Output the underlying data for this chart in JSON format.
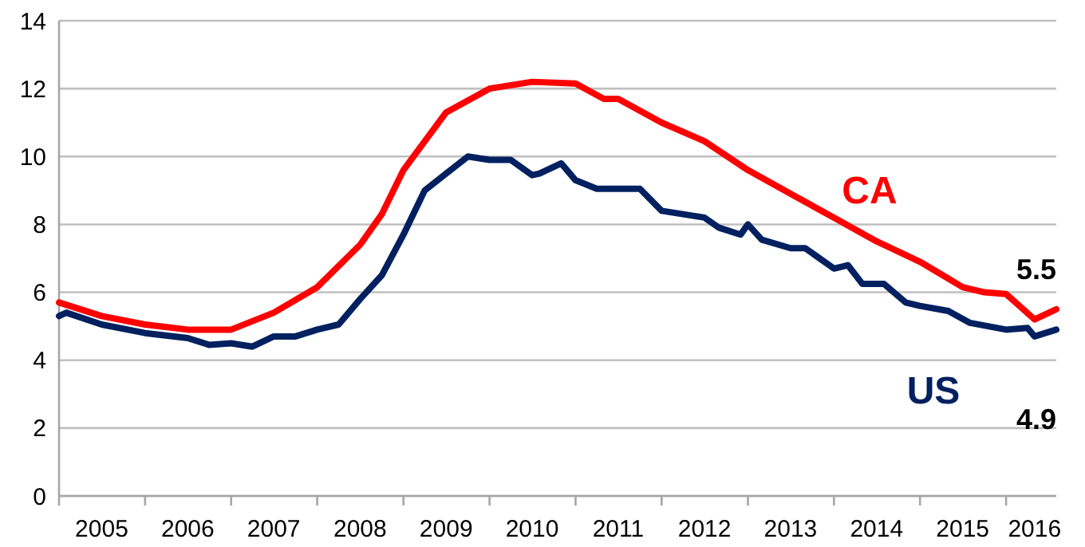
{
  "chart_data": {
    "type": "line",
    "ylim": [
      0,
      14
    ],
    "yticks": [
      0,
      2,
      4,
      6,
      8,
      10,
      12,
      14
    ],
    "grid": "y",
    "xlim": [
      "2005-01",
      "2016-08"
    ],
    "xticks": [
      {
        "value": "2005-07",
        "label": "2005"
      },
      {
        "value": "2006-01",
        "label": null
      },
      {
        "value": "2006-07",
        "label": "2006"
      },
      {
        "value": "2007-01",
        "label": null
      },
      {
        "value": "2007-07",
        "label": "2007"
      },
      {
        "value": "2008-01",
        "label": null
      },
      {
        "value": "2008-07",
        "label": "2008"
      },
      {
        "value": "2009-01",
        "label": null
      },
      {
        "value": "2009-07",
        "label": "2009"
      },
      {
        "value": "2010-01",
        "label": null
      },
      {
        "value": "2010-07",
        "label": "2010"
      },
      {
        "value": "2011-01",
        "label": null
      },
      {
        "value": "2011-07",
        "label": "2011"
      },
      {
        "value": "2012-01",
        "label": null
      },
      {
        "value": "2012-07",
        "label": "2012"
      },
      {
        "value": "2013-01",
        "label": null
      },
      {
        "value": "2013-07",
        "label": "2013"
      },
      {
        "value": "2014-01",
        "label": null
      },
      {
        "value": "2014-07",
        "label": "2014"
      },
      {
        "value": "2015-01",
        "label": null
      },
      {
        "value": "2015-07",
        "label": "2015"
      },
      {
        "value": "2016-01",
        "label": null
      },
      {
        "value": "2016-05",
        "label": "2016"
      }
    ],
    "series": [
      {
        "name": "CA",
        "color": "#ff0000",
        "x": [
          "2005-01",
          "2005-07",
          "2006-01",
          "2006-07",
          "2007-01",
          "2007-07",
          "2008-01",
          "2008-07",
          "2008-10",
          "2009-01",
          "2009-07",
          "2010-01",
          "2010-07",
          "2011-01",
          "2011-05",
          "2011-07",
          "2012-01",
          "2012-07",
          "2013-01",
          "2013-07",
          "2014-01",
          "2014-07",
          "2015-01",
          "2015-07",
          "2015-10",
          "2016-01",
          "2016-05",
          "2016-08"
        ],
        "values": [
          5.7,
          5.3,
          5.05,
          4.9,
          4.9,
          5.4,
          6.15,
          7.4,
          8.3,
          9.6,
          11.3,
          12.0,
          12.2,
          12.15,
          11.7,
          11.7,
          11.0,
          10.45,
          9.6,
          8.9,
          8.2,
          7.5,
          6.9,
          6.15,
          6.0,
          5.95,
          5.2,
          5.5
        ]
      },
      {
        "name": "US",
        "color": "#002060",
        "x": [
          "2005-01",
          "2005-02",
          "2005-07",
          "2006-01",
          "2006-07",
          "2006-10",
          "2007-01",
          "2007-04",
          "2007-07",
          "2007-10",
          "2008-01",
          "2008-04",
          "2008-07",
          "2008-10",
          "2009-01",
          "2009-04",
          "2009-07",
          "2009-10",
          "2010-01",
          "2010-04",
          "2010-07",
          "2010-08",
          "2010-11",
          "2011-01",
          "2011-04",
          "2011-10",
          "2012-01",
          "2012-07",
          "2012-09",
          "2012-12",
          "2013-01",
          "2013-03",
          "2013-07",
          "2013-09",
          "2014-01",
          "2014-03",
          "2014-05",
          "2014-08",
          "2014-11",
          "2015-01",
          "2015-05",
          "2015-08",
          "2016-01",
          "2016-04",
          "2016-05",
          "2016-08"
        ],
        "values": [
          5.3,
          5.4,
          5.05,
          4.8,
          4.65,
          4.45,
          4.5,
          4.4,
          4.7,
          4.7,
          4.9,
          5.05,
          5.8,
          6.5,
          7.7,
          9.0,
          9.5,
          10.0,
          9.9,
          9.9,
          9.45,
          9.5,
          9.8,
          9.3,
          9.05,
          9.05,
          8.4,
          8.2,
          7.9,
          7.7,
          8.0,
          7.55,
          7.3,
          7.3,
          6.7,
          6.8,
          6.25,
          6.25,
          5.7,
          5.6,
          5.45,
          5.1,
          4.9,
          4.95,
          4.7,
          4.9
        ]
      }
    ],
    "annotations": [
      {
        "text": "5.5",
        "x": "2016-08",
        "y": 5.5
      },
      {
        "text": "4.9",
        "x": "2016-08",
        "y": 4.9
      }
    ]
  }
}
